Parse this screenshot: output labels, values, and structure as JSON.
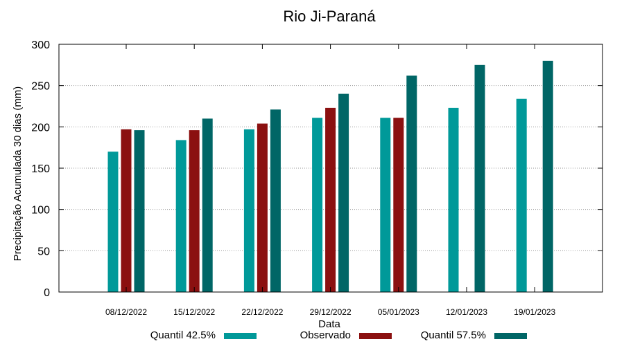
{
  "chart_data": {
    "type": "bar",
    "title": "Rio Ji-Paraná",
    "xlabel": "Data",
    "ylabel": "Precipitação Acumulada 30 dias (mm)",
    "ylim": [
      0,
      300
    ],
    "yticks": [
      0,
      50,
      100,
      150,
      200,
      250,
      300
    ],
    "grid": true,
    "legend_position": "bottom",
    "categories": [
      "08/12/2022",
      "15/12/2022",
      "22/12/2022",
      "29/12/2022",
      "05/01/2023",
      "12/01/2023",
      "19/01/2023"
    ],
    "series": [
      {
        "name": "Quantil 42.5%",
        "color": "#009999",
        "values": [
          170,
          184,
          197,
          211,
          211,
          223,
          234
        ]
      },
      {
        "name": "Observado",
        "color": "#8b1010",
        "values": [
          197,
          196,
          204,
          223,
          211,
          null,
          null
        ]
      },
      {
        "name": "Quantil 57.5%",
        "color": "#006666",
        "values": [
          196,
          210,
          221,
          240,
          262,
          275,
          280
        ]
      }
    ]
  }
}
